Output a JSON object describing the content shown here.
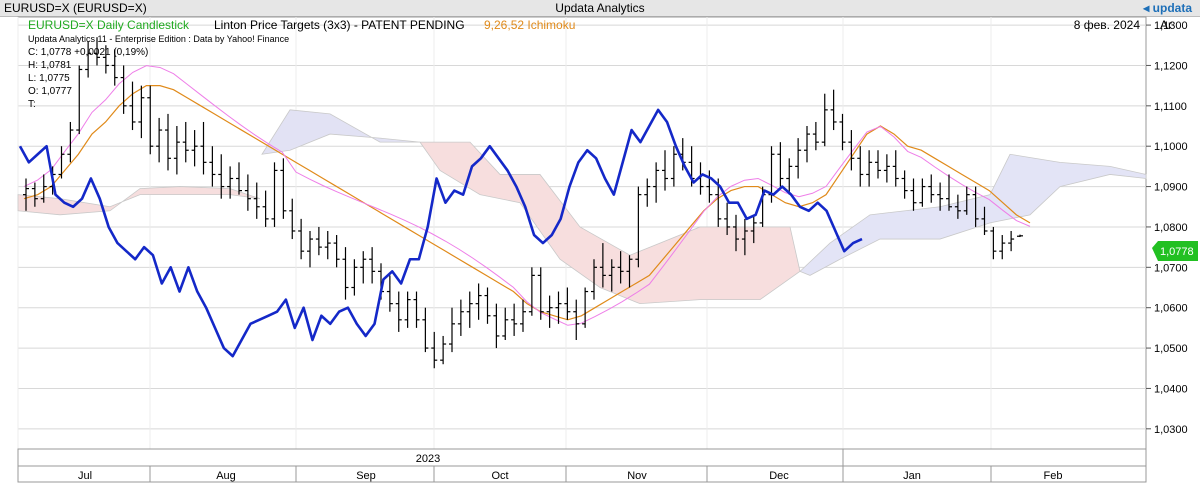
{
  "window": {
    "title_left": "EURUSD=X (EURUSD=X)",
    "title_center": "Updata Analytics",
    "brand": "updata",
    "brand_icon": "arrow-icon"
  },
  "legend": {
    "series_label": "EURUSD=X Daily Candlestick",
    "study_label": "Linton Price Targets (3x3) - PATENT PENDING",
    "ichimoku_label": "9,26,52 Ichimoku",
    "date": "8 фев. 2024",
    "right_header": "Ar",
    "edition": "Updata Analytics 11 - Enterprise Edition : Data by Yahoo! Finance",
    "close": "C: 1,0778  +0,0021 (0,19%)",
    "high": "H: 1,0781",
    "low": "L: 1,0775",
    "open": "O: 1,0777",
    "time": "T:",
    "last_price_tag": "1,0778",
    "colors": {
      "series": "#22aa22",
      "ichimoku": "#e08a1a",
      "price_tag": "#22c022"
    }
  },
  "chart_data": {
    "type": "candlestick",
    "title": "EURUSD=X Daily Candlestick",
    "y_ticks": [
      "1,1300",
      "1,1200",
      "1,1100",
      "1,1000",
      "1,0900",
      "1,0800",
      "1,0700",
      "1,0600",
      "1,0500",
      "1,0400",
      "1,0300"
    ],
    "ylim": [
      1.025,
      1.132
    ],
    "x_months": [
      "Jul",
      "Aug",
      "Sep",
      "Oct",
      "Nov",
      "Dec",
      "Jan",
      "Feb"
    ],
    "year_label": "2023",
    "grid": true,
    "candles": [
      {
        "o": 1.088,
        "h": 1.092,
        "l": 1.084,
        "c": 1.0895
      },
      {
        "o": 1.0895,
        "h": 1.091,
        "l": 1.085,
        "c": 1.087
      },
      {
        "o": 1.087,
        "h": 1.093,
        "l": 1.086,
        "c": 1.09
      },
      {
        "o": 1.09,
        "h": 1.095,
        "l": 1.088,
        "c": 1.093
      },
      {
        "o": 1.093,
        "h": 1.1,
        "l": 1.092,
        "c": 1.098
      },
      {
        "o": 1.098,
        "h": 1.106,
        "l": 1.096,
        "c": 1.104
      },
      {
        "o": 1.104,
        "h": 1.12,
        "l": 1.103,
        "c": 1.119
      },
      {
        "o": 1.119,
        "h": 1.126,
        "l": 1.117,
        "c": 1.123
      },
      {
        "o": 1.123,
        "h": 1.127,
        "l": 1.12,
        "c": 1.122
      },
      {
        "o": 1.122,
        "h": 1.125,
        "l": 1.118,
        "c": 1.12
      },
      {
        "o": 1.12,
        "h": 1.124,
        "l": 1.115,
        "c": 1.117
      },
      {
        "o": 1.117,
        "h": 1.12,
        "l": 1.108,
        "c": 1.11
      },
      {
        "o": 1.11,
        "h": 1.116,
        "l": 1.104,
        "c": 1.106
      },
      {
        "o": 1.106,
        "h": 1.115,
        "l": 1.102,
        "c": 1.112
      },
      {
        "o": 1.112,
        "h": 1.115,
        "l": 1.098,
        "c": 1.1
      },
      {
        "o": 1.1,
        "h": 1.107,
        "l": 1.096,
        "c": 1.104
      },
      {
        "o": 1.104,
        "h": 1.108,
        "l": 1.094,
        "c": 1.097
      },
      {
        "o": 1.097,
        "h": 1.105,
        "l": 1.093,
        "c": 1.101
      },
      {
        "o": 1.101,
        "h": 1.106,
        "l": 1.096,
        "c": 1.099
      },
      {
        "o": 1.099,
        "h": 1.104,
        "l": 1.095,
        "c": 1.1
      },
      {
        "o": 1.1,
        "h": 1.106,
        "l": 1.093,
        "c": 1.096
      },
      {
        "o": 1.096,
        "h": 1.1,
        "l": 1.09,
        "c": 1.093
      },
      {
        "o": 1.093,
        "h": 1.098,
        "l": 1.087,
        "c": 1.09
      },
      {
        "o": 1.09,
        "h": 1.095,
        "l": 1.087,
        "c": 1.092
      },
      {
        "o": 1.092,
        "h": 1.096,
        "l": 1.088,
        "c": 1.089
      },
      {
        "o": 1.089,
        "h": 1.093,
        "l": 1.084,
        "c": 1.087
      },
      {
        "o": 1.087,
        "h": 1.091,
        "l": 1.082,
        "c": 1.085
      },
      {
        "o": 1.085,
        "h": 1.089,
        "l": 1.08,
        "c": 1.082
      },
      {
        "o": 1.082,
        "h": 1.096,
        "l": 1.08,
        "c": 1.094
      },
      {
        "o": 1.094,
        "h": 1.097,
        "l": 1.082,
        "c": 1.084
      },
      {
        "o": 1.084,
        "h": 1.087,
        "l": 1.077,
        "c": 1.079
      },
      {
        "o": 1.079,
        "h": 1.082,
        "l": 1.072,
        "c": 1.074
      },
      {
        "o": 1.074,
        "h": 1.079,
        "l": 1.07,
        "c": 1.077
      },
      {
        "o": 1.077,
        "h": 1.08,
        "l": 1.073,
        "c": 1.075
      },
      {
        "o": 1.075,
        "h": 1.079,
        "l": 1.072,
        "c": 1.076
      },
      {
        "o": 1.076,
        "h": 1.078,
        "l": 1.07,
        "c": 1.072
      },
      {
        "o": 1.072,
        "h": 1.075,
        "l": 1.062,
        "c": 1.065
      },
      {
        "o": 1.065,
        "h": 1.072,
        "l": 1.063,
        "c": 1.07
      },
      {
        "o": 1.07,
        "h": 1.074,
        "l": 1.066,
        "c": 1.072
      },
      {
        "o": 1.072,
        "h": 1.075,
        "l": 1.066,
        "c": 1.069
      },
      {
        "o": 1.069,
        "h": 1.071,
        "l": 1.062,
        "c": 1.064
      },
      {
        "o": 1.064,
        "h": 1.068,
        "l": 1.059,
        "c": 1.061
      },
      {
        "o": 1.061,
        "h": 1.064,
        "l": 1.054,
        "c": 1.057
      },
      {
        "o": 1.057,
        "h": 1.064,
        "l": 1.055,
        "c": 1.062
      },
      {
        "o": 1.062,
        "h": 1.064,
        "l": 1.055,
        "c": 1.057
      },
      {
        "o": 1.057,
        "h": 1.06,
        "l": 1.049,
        "c": 1.05
      },
      {
        "o": 1.05,
        "h": 1.054,
        "l": 1.045,
        "c": 1.047
      },
      {
        "o": 1.047,
        "h": 1.053,
        "l": 1.046,
        "c": 1.051
      },
      {
        "o": 1.051,
        "h": 1.06,
        "l": 1.049,
        "c": 1.056
      },
      {
        "o": 1.056,
        "h": 1.062,
        "l": 1.053,
        "c": 1.059
      },
      {
        "o": 1.059,
        "h": 1.064,
        "l": 1.055,
        "c": 1.061
      },
      {
        "o": 1.061,
        "h": 1.066,
        "l": 1.057,
        "c": 1.063
      },
      {
        "o": 1.063,
        "h": 1.065,
        "l": 1.056,
        "c": 1.058
      },
      {
        "o": 1.058,
        "h": 1.061,
        "l": 1.05,
        "c": 1.053
      },
      {
        "o": 1.053,
        "h": 1.06,
        "l": 1.052,
        "c": 1.057
      },
      {
        "o": 1.057,
        "h": 1.061,
        "l": 1.053,
        "c": 1.056
      },
      {
        "o": 1.056,
        "h": 1.062,
        "l": 1.054,
        "c": 1.059
      },
      {
        "o": 1.059,
        "h": 1.07,
        "l": 1.058,
        "c": 1.068
      },
      {
        "o": 1.068,
        "h": 1.07,
        "l": 1.057,
        "c": 1.059
      },
      {
        "o": 1.059,
        "h": 1.063,
        "l": 1.055,
        "c": 1.06
      },
      {
        "o": 1.06,
        "h": 1.064,
        "l": 1.056,
        "c": 1.061
      },
      {
        "o": 1.061,
        "h": 1.065,
        "l": 1.057,
        "c": 1.059
      },
      {
        "o": 1.059,
        "h": 1.062,
        "l": 1.052,
        "c": 1.056
      },
      {
        "o": 1.056,
        "h": 1.065,
        "l": 1.055,
        "c": 1.064
      },
      {
        "o": 1.064,
        "h": 1.072,
        "l": 1.062,
        "c": 1.07
      },
      {
        "o": 1.07,
        "h": 1.076,
        "l": 1.065,
        "c": 1.068
      },
      {
        "o": 1.068,
        "h": 1.072,
        "l": 1.064,
        "c": 1.07
      },
      {
        "o": 1.07,
        "h": 1.074,
        "l": 1.066,
        "c": 1.069
      },
      {
        "o": 1.069,
        "h": 1.073,
        "l": 1.065,
        "c": 1.072
      },
      {
        "o": 1.072,
        "h": 1.09,
        "l": 1.07,
        "c": 1.088
      },
      {
        "o": 1.088,
        "h": 1.092,
        "l": 1.085,
        "c": 1.09
      },
      {
        "o": 1.09,
        "h": 1.096,
        "l": 1.086,
        "c": 1.094
      },
      {
        "o": 1.094,
        "h": 1.099,
        "l": 1.089,
        "c": 1.092
      },
      {
        "o": 1.092,
        "h": 1.1,
        "l": 1.09,
        "c": 1.098
      },
      {
        "o": 1.098,
        "h": 1.102,
        "l": 1.094,
        "c": 1.096
      },
      {
        "o": 1.096,
        "h": 1.1,
        "l": 1.09,
        "c": 1.092
      },
      {
        "o": 1.092,
        "h": 1.096,
        "l": 1.088,
        "c": 1.09
      },
      {
        "o": 1.09,
        "h": 1.094,
        "l": 1.086,
        "c": 1.088
      },
      {
        "o": 1.088,
        "h": 1.092,
        "l": 1.08,
        "c": 1.082
      },
      {
        "o": 1.082,
        "h": 1.086,
        "l": 1.078,
        "c": 1.08
      },
      {
        "o": 1.08,
        "h": 1.083,
        "l": 1.074,
        "c": 1.077
      },
      {
        "o": 1.077,
        "h": 1.082,
        "l": 1.073,
        "c": 1.079
      },
      {
        "o": 1.079,
        "h": 1.083,
        "l": 1.076,
        "c": 1.081
      },
      {
        "o": 1.081,
        "h": 1.09,
        "l": 1.08,
        "c": 1.088
      },
      {
        "o": 1.088,
        "h": 1.1,
        "l": 1.086,
        "c": 1.098
      },
      {
        "o": 1.098,
        "h": 1.101,
        "l": 1.09,
        "c": 1.092
      },
      {
        "o": 1.092,
        "h": 1.097,
        "l": 1.088,
        "c": 1.095
      },
      {
        "o": 1.095,
        "h": 1.102,
        "l": 1.092,
        "c": 1.099
      },
      {
        "o": 1.099,
        "h": 1.105,
        "l": 1.096,
        "c": 1.103
      },
      {
        "o": 1.103,
        "h": 1.106,
        "l": 1.099,
        "c": 1.101
      },
      {
        "o": 1.101,
        "h": 1.113,
        "l": 1.1,
        "c": 1.109
      },
      {
        "o": 1.109,
        "h": 1.114,
        "l": 1.104,
        "c": 1.106
      },
      {
        "o": 1.106,
        "h": 1.108,
        "l": 1.099,
        "c": 1.101
      },
      {
        "o": 1.101,
        "h": 1.104,
        "l": 1.094,
        "c": 1.097
      },
      {
        "o": 1.097,
        "h": 1.1,
        "l": 1.09,
        "c": 1.093
      },
      {
        "o": 1.093,
        "h": 1.099,
        "l": 1.09,
        "c": 1.096
      },
      {
        "o": 1.096,
        "h": 1.099,
        "l": 1.092,
        "c": 1.094
      },
      {
        "o": 1.094,
        "h": 1.098,
        "l": 1.091,
        "c": 1.095
      },
      {
        "o": 1.095,
        "h": 1.099,
        "l": 1.09,
        "c": 1.092
      },
      {
        "o": 1.092,
        "h": 1.094,
        "l": 1.087,
        "c": 1.089
      },
      {
        "o": 1.089,
        "h": 1.092,
        "l": 1.084,
        "c": 1.086
      },
      {
        "o": 1.086,
        "h": 1.092,
        "l": 1.085,
        "c": 1.09
      },
      {
        "o": 1.09,
        "h": 1.093,
        "l": 1.086,
        "c": 1.088
      },
      {
        "o": 1.088,
        "h": 1.091,
        "l": 1.084,
        "c": 1.087
      },
      {
        "o": 1.087,
        "h": 1.093,
        "l": 1.084,
        "c": 1.085
      },
      {
        "o": 1.085,
        "h": 1.088,
        "l": 1.082,
        "c": 1.084
      },
      {
        "o": 1.084,
        "h": 1.09,
        "l": 1.083,
        "c": 1.088
      },
      {
        "o": 1.088,
        "h": 1.09,
        "l": 1.08,
        "c": 1.082
      },
      {
        "o": 1.082,
        "h": 1.085,
        "l": 1.078,
        "c": 1.079
      },
      {
        "o": 1.079,
        "h": 1.08,
        "l": 1.072,
        "c": 1.074
      },
      {
        "o": 1.074,
        "h": 1.078,
        "l": 1.072,
        "c": 1.076
      },
      {
        "o": 1.076,
        "h": 1.079,
        "l": 1.074,
        "c": 1.077
      },
      {
        "o": 1.0777,
        "h": 1.0781,
        "l": 1.0775,
        "c": 1.0778
      }
    ],
    "price_line": [
      1.1,
      1.096,
      1.098,
      1.1,
      1.088,
      1.086,
      1.085,
      1.087,
      1.092,
      1.087,
      1.08,
      1.076,
      1.074,
      1.072,
      1.075,
      1.073,
      1.066,
      1.07,
      1.064,
      1.07,
      1.064,
      1.06,
      1.055,
      1.05,
      1.048,
      1.052,
      1.056,
      1.057,
      1.058,
      1.059,
      1.062,
      1.055,
      1.06,
      1.052,
      1.058,
      1.056,
      1.059,
      1.06,
      1.056,
      1.053,
      1.056,
      1.067,
      1.069,
      1.066,
      1.072,
      1.072,
      1.08,
      1.092,
      1.086,
      1.089,
      1.088,
      1.095,
      1.097,
      1.1,
      1.097,
      1.094,
      1.09,
      1.085,
      1.078,
      1.076,
      1.078,
      1.082,
      1.09,
      1.096,
      1.099,
      1.097,
      1.092,
      1.088,
      1.096,
      1.104,
      1.101,
      1.105,
      1.109,
      1.106,
      1.1,
      1.095,
      1.091,
      1.093,
      1.092,
      1.09,
      1.086,
      1.086,
      1.082,
      1.083,
      1.089,
      1.088,
      1.09,
      1.088,
      1.085,
      1.084,
      1.086,
      1.084,
      1.079,
      1.074,
      1.076,
      1.077
    ],
    "ichimoku_line": [
      1.087,
      1.088,
      1.09,
      1.094,
      1.098,
      1.103,
      1.106,
      1.11,
      1.113,
      1.115,
      1.115,
      1.114,
      1.112,
      1.11,
      1.108,
      1.106,
      1.104,
      1.102,
      1.1,
      1.098,
      1.096,
      1.094,
      1.092,
      1.09,
      1.088,
      1.086,
      1.084,
      1.082,
      1.08,
      1.078,
      1.076,
      1.074,
      1.072,
      1.07,
      1.068,
      1.066,
      1.064,
      1.061,
      1.059,
      1.058,
      1.057,
      1.058,
      1.06,
      1.062,
      1.064,
      1.066,
      1.068,
      1.072,
      1.076,
      1.08,
      1.084,
      1.087,
      1.089,
      1.09,
      1.09,
      1.088,
      1.086,
      1.085,
      1.086,
      1.088,
      1.093,
      1.098,
      1.103,
      1.105,
      1.103,
      1.1,
      1.099,
      1.097,
      1.095,
      1.093,
      1.091,
      1.089,
      1.086,
      1.083,
      1.081
    ]
  },
  "annotations": {
    "y_tick_labels": {
      "0": "1,1300",
      "1": "1,1200",
      "2": "1,1100",
      "3": "1,1000",
      "4": "1,0900",
      "5": "1,0800",
      "6": "1,0700",
      "7": "1,0600",
      "8": "1,0500",
      "9": "1,0400",
      "10": "1,0300"
    }
  }
}
